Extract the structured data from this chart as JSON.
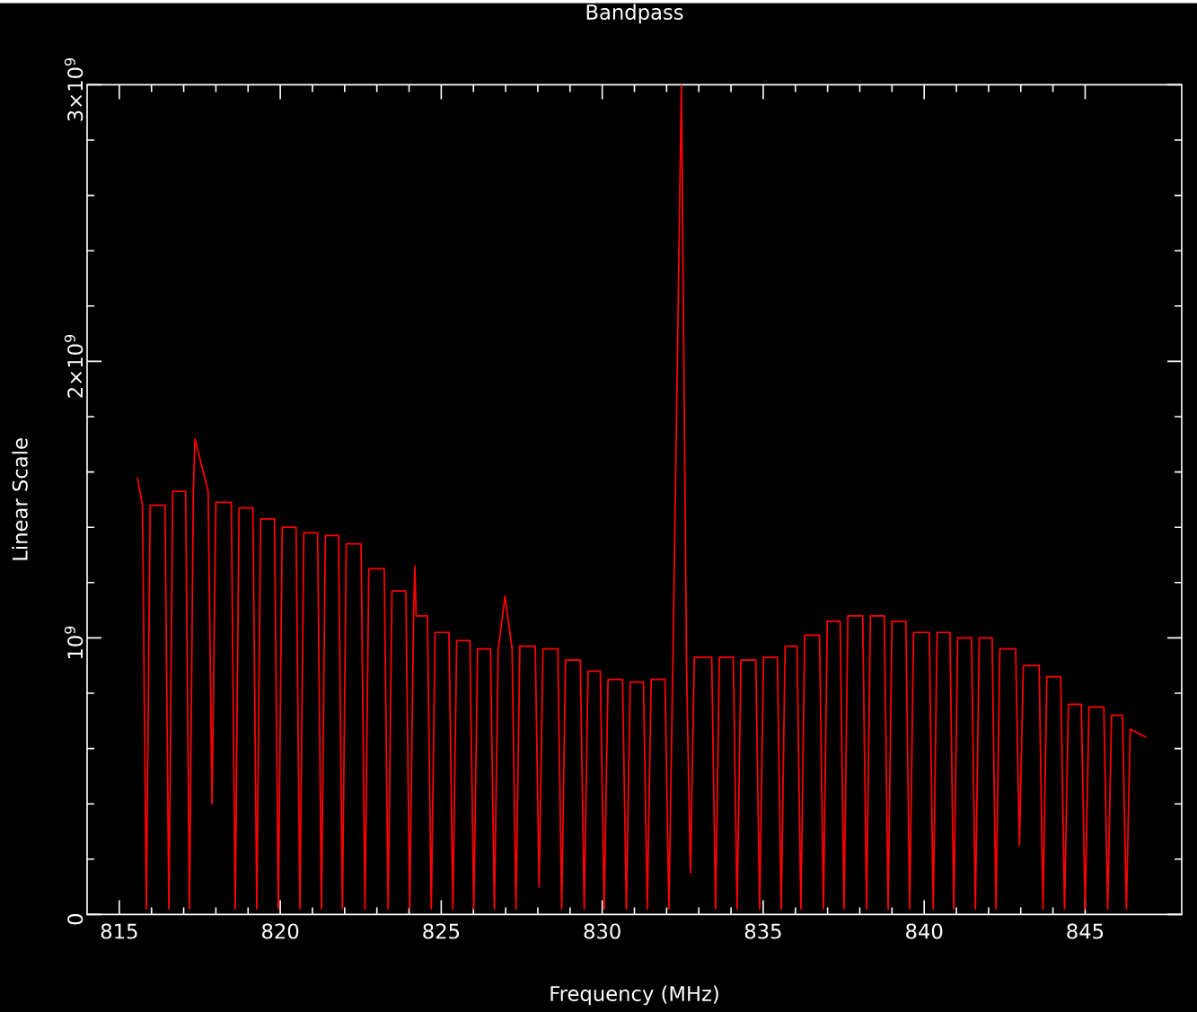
{
  "chart_data": {
    "type": "line",
    "title": "Bandpass",
    "xlabel": "Frequency (MHz)",
    "ylabel": "Linear Scale",
    "xlim": [
      814,
      848
    ],
    "ylim": [
      0,
      3000000000.0
    ],
    "xticks": [
      815,
      820,
      825,
      830,
      835,
      840,
      845
    ],
    "yticks": [
      {
        "value": 0,
        "label": "0"
      },
      {
        "value": 1000000000.0,
        "label": "10$^{9}$"
      },
      {
        "value": 2000000000.0,
        "label": "2×10$^{9}$"
      },
      {
        "value": 3000000000.0,
        "label": "3×10$^{9}$"
      }
    ],
    "x": [
      815.56,
      815.72,
      815.84,
      815.96,
      816.42,
      816.54,
      816.66,
      817.06,
      817.18,
      817.3,
      817.35,
      817.76,
      817.88,
      818.0,
      818.48,
      818.6,
      818.72,
      819.15,
      819.27,
      819.39,
      819.82,
      819.94,
      820.06,
      820.49,
      820.61,
      820.73,
      821.16,
      821.28,
      821.4,
      821.81,
      821.93,
      822.05,
      822.51,
      822.63,
      822.75,
      823.23,
      823.35,
      823.47,
      823.9,
      824.02,
      824.14,
      824.18,
      824.22,
      824.57,
      824.69,
      824.81,
      825.24,
      825.36,
      825.48,
      825.89,
      826.01,
      826.13,
      826.53,
      826.65,
      826.77,
      826.98,
      827.2,
      827.32,
      827.44,
      827.92,
      828.04,
      828.16,
      828.62,
      828.74,
      828.86,
      829.32,
      829.44,
      829.56,
      829.94,
      830.06,
      830.18,
      830.63,
      830.75,
      830.87,
      831.28,
      831.4,
      831.52,
      831.95,
      832.07,
      832.19,
      832.46,
      832.62,
      832.74,
      832.86,
      833.4,
      833.52,
      833.64,
      834.07,
      834.19,
      834.31,
      834.77,
      834.89,
      835.01,
      835.44,
      835.56,
      835.68,
      836.05,
      836.17,
      836.29,
      836.75,
      836.87,
      836.99,
      837.39,
      837.51,
      837.63,
      838.09,
      838.21,
      838.33,
      838.76,
      838.88,
      839.0,
      839.43,
      839.55,
      839.67,
      840.16,
      840.28,
      840.4,
      840.8,
      840.92,
      841.04,
      841.47,
      841.59,
      841.71,
      842.11,
      842.23,
      842.35,
      842.84,
      842.96,
      843.08,
      843.57,
      843.69,
      843.81,
      844.24,
      844.36,
      844.48,
      844.88,
      845.0,
      845.12,
      845.58,
      845.7,
      845.82,
      846.16,
      846.28,
      846.4,
      846.9
    ],
    "series": [
      {
        "color": "#ff0000",
        "values": [
          1580000000.0,
          1480000000.0,
          20000000.0,
          1480000000.0,
          1480000000.0,
          20000000.0,
          1530000000.0,
          1530000000.0,
          20000000.0,
          1530000000.0,
          1720000000.0,
          1530000000.0,
          400000000.0,
          1490000000.0,
          1490000000.0,
          20000000.0,
          1470000000.0,
          1470000000.0,
          20000000.0,
          1430000000.0,
          1430000000.0,
          20000000.0,
          1400000000.0,
          1400000000.0,
          20000000.0,
          1380000000.0,
          1380000000.0,
          20000000.0,
          1370000000.0,
          1370000000.0,
          20000000.0,
          1340000000.0,
          1340000000.0,
          20000000.0,
          1250000000.0,
          1250000000.0,
          20000000.0,
          1170000000.0,
          1170000000.0,
          20000000.0,
          1080000000.0,
          1260000000.0,
          1080000000.0,
          1080000000.0,
          20000000.0,
          1020000000.0,
          1020000000.0,
          20000000.0,
          990000000.0,
          990000000.0,
          20000000.0,
          960000000.0,
          960000000.0,
          20000000.0,
          960000000.0,
          1150000000.0,
          960000000.0,
          20000000.0,
          970000000.0,
          970000000.0,
          100000000.0,
          960000000.0,
          960000000.0,
          20000000.0,
          920000000.0,
          920000000.0,
          20000000.0,
          880000000.0,
          880000000.0,
          20000000.0,
          850000000.0,
          850000000.0,
          20000000.0,
          840000000.0,
          840000000.0,
          20000000.0,
          850000000.0,
          850000000.0,
          20000000.0,
          880000000.0,
          3000000000.0,
          880000000.0,
          150000000.0,
          930000000.0,
          930000000.0,
          20000000.0,
          930000000.0,
          930000000.0,
          20000000.0,
          920000000.0,
          920000000.0,
          20000000.0,
          930000000.0,
          930000000.0,
          20000000.0,
          970000000.0,
          970000000.0,
          20000000.0,
          1010000000.0,
          1010000000.0,
          20000000.0,
          1060000000.0,
          1060000000.0,
          20000000.0,
          1080000000.0,
          1080000000.0,
          20000000.0,
          1080000000.0,
          1080000000.0,
          20000000.0,
          1060000000.0,
          1060000000.0,
          20000000.0,
          1020000000.0,
          1020000000.0,
          20000000.0,
          1020000000.0,
          1020000000.0,
          20000000.0,
          1000000000.0,
          1000000000.0,
          20000000.0,
          1000000000.0,
          1000000000.0,
          20000000.0,
          960000000.0,
          960000000.0,
          250000000.0,
          900000000.0,
          900000000.0,
          20000000.0,
          860000000.0,
          860000000.0,
          20000000.0,
          760000000.0,
          760000000.0,
          20000000.0,
          750000000.0,
          750000000.0,
          20000000.0,
          720000000.0,
          720000000.0,
          20000000.0,
          670000000.0,
          640000000.0
        ]
      }
    ]
  }
}
